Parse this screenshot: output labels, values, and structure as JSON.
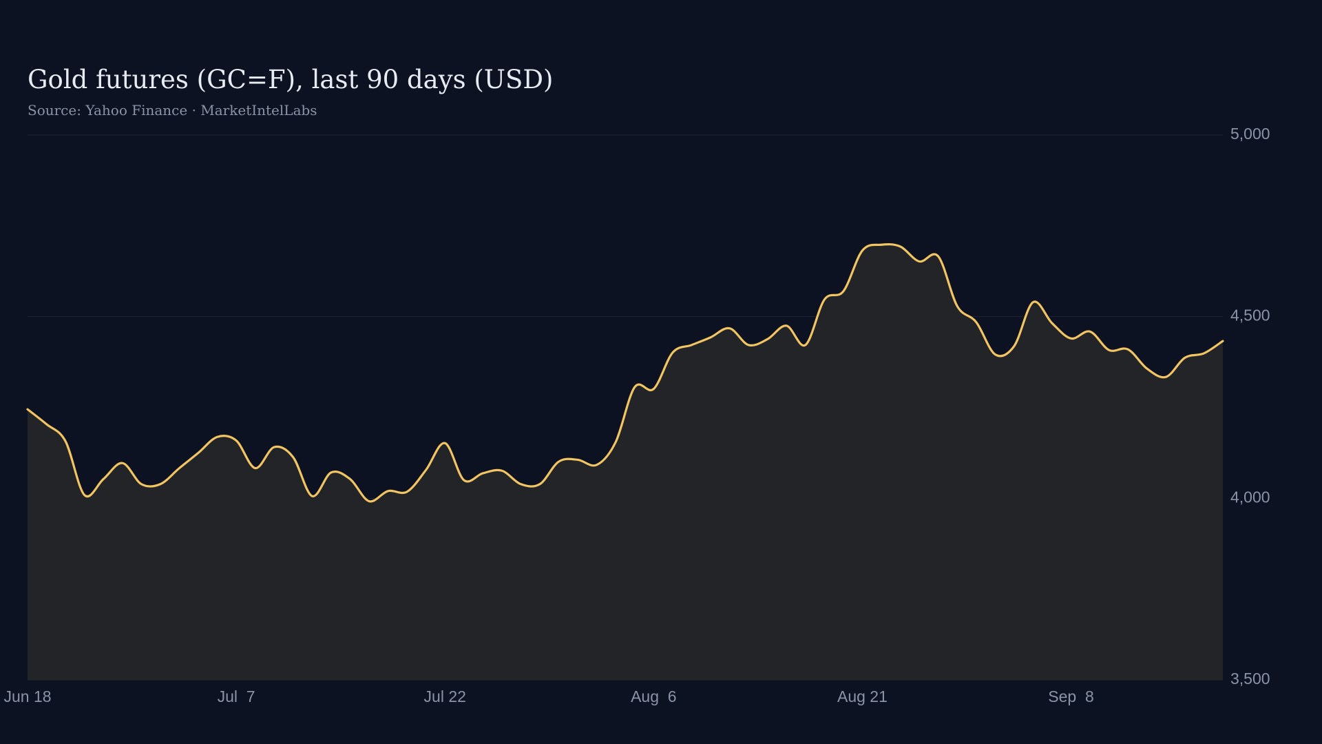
{
  "chart_data": {
    "type": "area",
    "title": "Gold futures (GC=F), last 90 days (USD)",
    "subtitle": "Source: Yahoo Finance · MarketIntelLabs",
    "categories": [
      "Jun 18",
      null,
      null,
      null,
      null,
      null,
      null,
      null,
      null,
      null,
      null,
      "Jul  7",
      null,
      null,
      null,
      null,
      null,
      null,
      null,
      null,
      null,
      null,
      "Jul 22",
      null,
      null,
      null,
      null,
      null,
      null,
      null,
      null,
      null,
      null,
      "Aug  6",
      null,
      null,
      null,
      null,
      null,
      null,
      null,
      null,
      null,
      null,
      "Aug 21",
      null,
      null,
      null,
      null,
      null,
      null,
      null,
      null,
      null,
      null,
      "Sep  8",
      null,
      null,
      null,
      null,
      null,
      null,
      null,
      null
    ],
    "series": [
      {
        "name": "GC=F",
        "color": "#f2c462",
        "values": [
          4245,
          4204,
          4157,
          4009,
          4053,
          4097,
          4039,
          4039,
          4083,
          4125,
          4169,
          4159,
          4083,
          4141,
          4113,
          4006,
          4071,
          4053,
          3992,
          4020,
          4018,
          4078,
          4152,
          4050,
          4069,
          4076,
          4039,
          4039,
          4101,
          4106,
          4092,
          4155,
          4306,
          4301,
          4401,
          4422,
          4443,
          4468,
          4422,
          4438,
          4475,
          4422,
          4547,
          4570,
          4682,
          4698,
          4693,
          4652,
          4666,
          4529,
          4485,
          4396,
          4419,
          4540,
          4482,
          4440,
          4459,
          4408,
          4410,
          4357,
          4334,
          4387,
          4399,
          4433
        ]
      }
    ],
    "ylim": [
      3500,
      5000
    ],
    "yticks": [
      {
        "value": 3500,
        "label": "3,500"
      },
      {
        "value": 4000,
        "label": "4,000"
      },
      {
        "value": 4500,
        "label": "4,500"
      },
      {
        "value": 5000,
        "label": "5,000"
      }
    ],
    "grid": true,
    "area_color": "#222428"
  }
}
